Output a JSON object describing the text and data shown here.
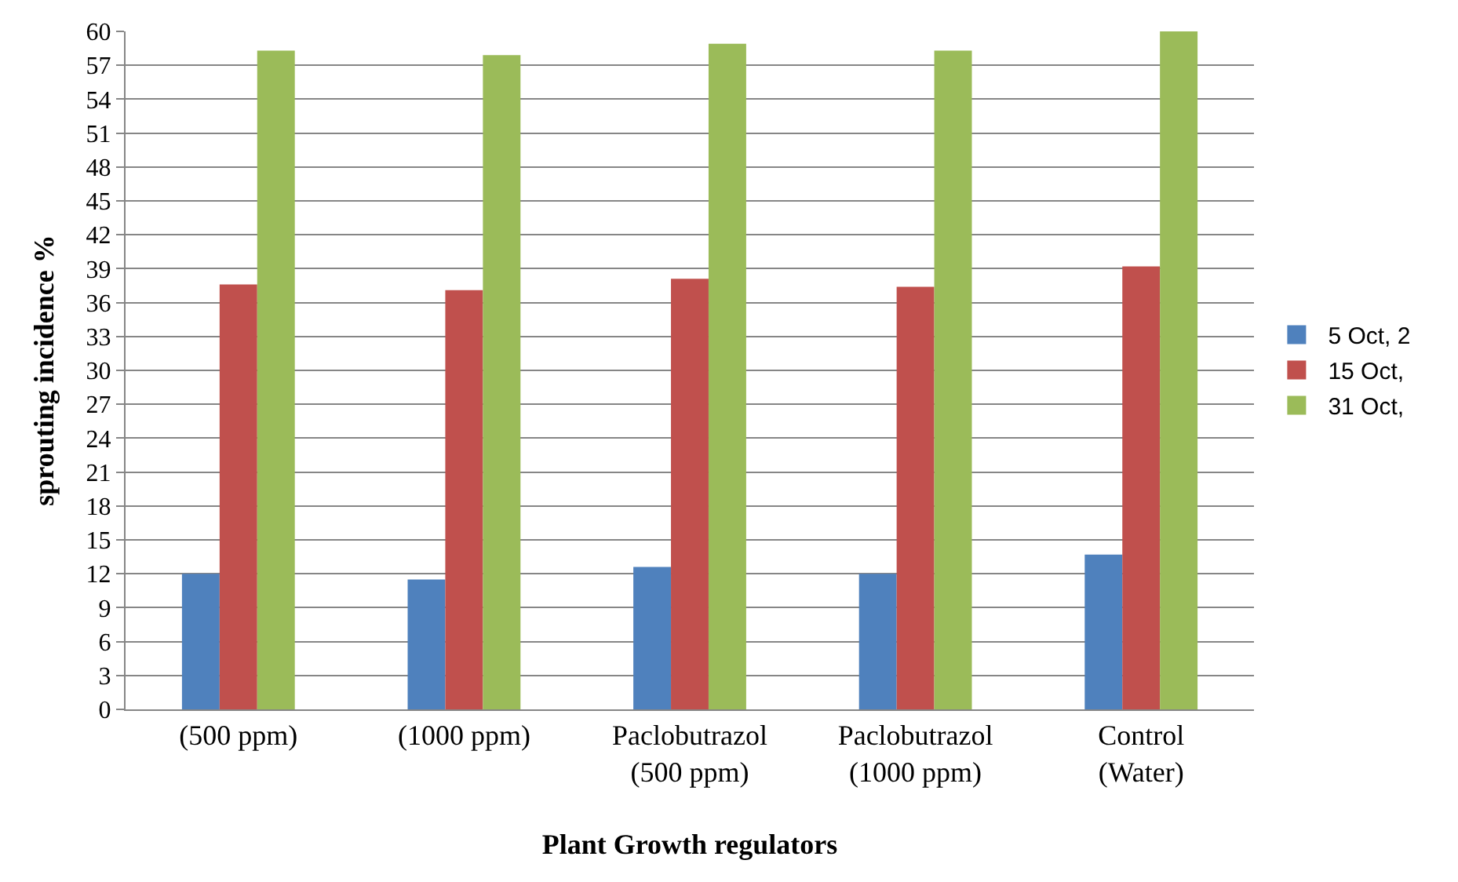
{
  "chart_data": {
    "type": "bar",
    "xlabel": "Plant Growth regulators",
    "ylabel": "sprouting incidence %",
    "categories": [
      "(500 ppm)",
      "(1000 ppm)",
      "Paclobutrazol\n(500 ppm)",
      "Paclobutrazol\n(1000 ppm)",
      "Control\n(Water)"
    ],
    "series": [
      {
        "name": "5 Oct, 2",
        "color": "#4f81bd",
        "values": [
          12.0,
          11.5,
          12.6,
          12.0,
          13.7
        ]
      },
      {
        "name": "15 Oct,",
        "color": "#c0504d",
        "values": [
          37.6,
          37.1,
          38.1,
          37.4,
          39.2
        ]
      },
      {
        "name": "31 Oct,",
        "color": "#9bbb59",
        "values": [
          58.3,
          57.9,
          58.9,
          58.3,
          60.0
        ]
      }
    ],
    "ylim": [
      0,
      60
    ],
    "yticks": [
      0,
      3,
      6,
      9,
      12,
      15,
      18,
      21,
      24,
      27,
      30,
      33,
      36,
      39,
      42,
      45,
      48,
      51,
      54,
      57,
      60
    ],
    "grid": "y",
    "legend": "right"
  }
}
